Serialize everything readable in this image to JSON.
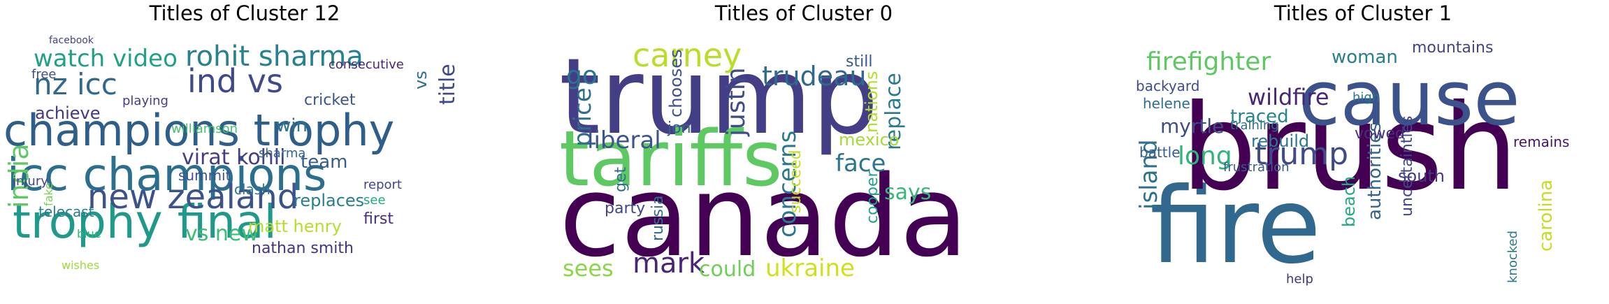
{
  "chart_data": [
    {
      "type": "wordcloud",
      "title": "Titles of Cluster 12",
      "words": [
        {
          "text": "champions trophy",
          "weight": 1.0,
          "color": "#2d5f8a"
        },
        {
          "text": "icc champions",
          "weight": 0.98,
          "color": "#2a6f8e"
        },
        {
          "text": "trophy final",
          "weight": 0.9,
          "color": "#1f9a8a"
        },
        {
          "text": "new zealand",
          "weight": 0.78,
          "color": "#3b528b"
        },
        {
          "text": "ind vs",
          "weight": 0.72,
          "color": "#3e4a89"
        },
        {
          "text": "nz icc",
          "weight": 0.7,
          "color": "#31688e"
        },
        {
          "text": "rohit sharma",
          "weight": 0.68,
          "color": "#26828e"
        },
        {
          "text": "india",
          "weight": 0.66,
          "color": "#5ec962"
        },
        {
          "text": "watch video",
          "weight": 0.6,
          "color": "#1fa187"
        },
        {
          "text": "vs new",
          "weight": 0.58,
          "color": "#3dbc74"
        },
        {
          "text": "virat kohli",
          "weight": 0.55,
          "color": "#433e85"
        },
        {
          "text": "title",
          "weight": 0.45,
          "color": "#3f4788"
        },
        {
          "text": "team",
          "weight": 0.42,
          "color": "#365c8d"
        },
        {
          "text": "win",
          "weight": 0.4,
          "color": "#2c728e"
        },
        {
          "text": "vs",
          "weight": 0.4,
          "color": "#2e6e8e"
        },
        {
          "text": "matt henry",
          "weight": 0.38,
          "color": "#b5de2b"
        },
        {
          "text": "replaces",
          "weight": 0.38,
          "color": "#277f8e"
        },
        {
          "text": "nathan smith",
          "weight": 0.34,
          "color": "#46337f"
        },
        {
          "text": "first",
          "weight": 0.34,
          "color": "#472d7b"
        },
        {
          "text": "achieve",
          "weight": 0.33,
          "color": "#453882"
        },
        {
          "text": "cricket",
          "weight": 0.32,
          "color": "#3a548c"
        },
        {
          "text": "summit",
          "weight": 0.32,
          "color": "#3b528b"
        },
        {
          "text": "clash",
          "weight": 0.32,
          "color": "#2a788e"
        },
        {
          "text": "telecast",
          "weight": 0.3,
          "color": "#287c8e"
        },
        {
          "text": "playing",
          "weight": 0.28,
          "color": "#433e85"
        },
        {
          "text": "consecutive",
          "weight": 0.28,
          "color": "#482576"
        },
        {
          "text": "free",
          "weight": 0.28,
          "color": "#3e4c8a"
        },
        {
          "text": "fake",
          "weight": 0.28,
          "color": "#7ad151"
        },
        {
          "text": "report",
          "weight": 0.27,
          "color": "#404688"
        },
        {
          "text": "sharma",
          "weight": 0.26,
          "color": "#31668e"
        },
        {
          "text": "williamson",
          "weight": 0.26,
          "color": "#4ac16d"
        },
        {
          "text": "injury",
          "weight": 0.25,
          "color": "#3f4788"
        },
        {
          "text": "see",
          "weight": 0.28,
          "color": "#22a884"
        },
        {
          "text": "wishes",
          "weight": 0.25,
          "color": "#9fda3a"
        },
        {
          "text": "blue",
          "weight": 0.25,
          "color": "#2fb47c"
        },
        {
          "text": "facebook",
          "weight": 0.2,
          "color": "#414487"
        }
      ]
    },
    {
      "type": "wordcloud",
      "title": "Titles of Cluster 0",
      "words": [
        {
          "text": "trump",
          "weight": 1.0,
          "color": "#433e85"
        },
        {
          "text": "canada",
          "weight": 1.0,
          "color": "#440154"
        },
        {
          "text": "tariffs",
          "weight": 0.95,
          "color": "#5ec962"
        },
        {
          "text": "carney",
          "weight": 0.5,
          "color": "#b8de29"
        },
        {
          "text": "trudeau",
          "weight": 0.45,
          "color": "#30698e"
        },
        {
          "text": "justin",
          "weight": 0.45,
          "color": "#3e4c8a"
        },
        {
          "text": "concerns",
          "weight": 0.42,
          "color": "#2a778e"
        },
        {
          "text": "ukraine",
          "weight": 0.4,
          "color": "#d0e11c"
        },
        {
          "text": "mark",
          "weight": 0.38,
          "color": "#482677"
        },
        {
          "text": "price",
          "weight": 0.38,
          "color": "#2e6f8e"
        },
        {
          "text": "face",
          "weight": 0.38,
          "color": "#2b758e"
        },
        {
          "text": "liberal",
          "weight": 0.36,
          "color": "#3a548c"
        },
        {
          "text": "says",
          "weight": 0.34,
          "color": "#35b779"
        },
        {
          "text": "replace",
          "weight": 0.34,
          "color": "#297a8e"
        },
        {
          "text": "could",
          "weight": 0.34,
          "color": "#6ece58"
        },
        {
          "text": "sees",
          "weight": 0.34,
          "color": "#8bd646"
        },
        {
          "text": "go",
          "weight": 0.34,
          "color": "#2c738e"
        },
        {
          "text": "mexico",
          "weight": 0.3,
          "color": "#a5db36"
        },
        {
          "text": "nations",
          "weight": 0.3,
          "color": "#b5de2b"
        },
        {
          "text": "chooses",
          "weight": 0.28,
          "color": "#3b528b"
        },
        {
          "text": "still",
          "weight": 0.26,
          "color": "#38598c"
        },
        {
          "text": "party",
          "weight": 0.26,
          "color": "#404588"
        },
        {
          "text": "jon",
          "weight": 0.26,
          "color": "#33638d"
        },
        {
          "text": "russia",
          "weight": 0.26,
          "color": "#306a8e"
        },
        {
          "text": "succeed",
          "weight": 0.26,
          "color": "#c2df23"
        },
        {
          "text": "cooper",
          "weight": 0.26,
          "color": "#20a386"
        },
        {
          "text": "get",
          "weight": 0.24,
          "color": "#2d708e"
        }
      ]
    },
    {
      "type": "wordcloud",
      "title": "Titles of Cluster 1",
      "words": [
        {
          "text": "fire",
          "weight": 1.0,
          "color": "#31688e"
        },
        {
          "text": "brush",
          "weight": 1.0,
          "color": "#440154"
        },
        {
          "text": "cause",
          "weight": 0.85,
          "color": "#3b528b"
        },
        {
          "text": "trump",
          "weight": 0.45,
          "color": "#3e4a89"
        },
        {
          "text": "firefighter",
          "weight": 0.4,
          "color": "#5ec962"
        },
        {
          "text": "island",
          "weight": 0.4,
          "color": "#2c728e"
        },
        {
          "text": "wildfire",
          "weight": 0.36,
          "color": "#482677"
        },
        {
          "text": "long",
          "weight": 0.36,
          "color": "#2fb47c"
        },
        {
          "text": "carolina",
          "weight": 0.34,
          "color": "#c2df23"
        },
        {
          "text": "authorities",
          "weight": 0.32,
          "color": "#33638d"
        },
        {
          "text": "beach",
          "weight": 0.32,
          "color": "#22a884"
        },
        {
          "text": "myrtle",
          "weight": 0.3,
          "color": "#3e4c8a"
        },
        {
          "text": "traced",
          "weight": 0.3,
          "color": "#25858e"
        },
        {
          "text": "woman",
          "weight": 0.3,
          "color": "#277f8e"
        },
        {
          "text": "south",
          "weight": 0.3,
          "color": "#453882"
        },
        {
          "text": "rebuild",
          "weight": 0.28,
          "color": "#2a788e"
        },
        {
          "text": "uncertainties",
          "weight": 0.26,
          "color": "#3f4889"
        },
        {
          "text": "mountains",
          "weight": 0.26,
          "color": "#414487"
        },
        {
          "text": "vowed",
          "weight": 0.26,
          "color": "#46307e"
        },
        {
          "text": "backyard",
          "weight": 0.24,
          "color": "#3e4c8a"
        },
        {
          "text": "helene",
          "weight": 0.24,
          "color": "#2e6e8e"
        },
        {
          "text": "battle",
          "weight": 0.24,
          "color": "#355e8d"
        },
        {
          "text": "frustration",
          "weight": 0.22,
          "color": "#365c8d"
        },
        {
          "text": "remains",
          "weight": 0.22,
          "color": "#481467"
        },
        {
          "text": "training",
          "weight": 0.2,
          "color": "#2d708e"
        },
        {
          "text": "high",
          "weight": 0.2,
          "color": "#2b758e"
        },
        {
          "text": "help",
          "weight": 0.2,
          "color": "#46337f"
        },
        {
          "text": "knocked",
          "weight": 0.2,
          "color": "#2a788e"
        }
      ]
    }
  ]
}
